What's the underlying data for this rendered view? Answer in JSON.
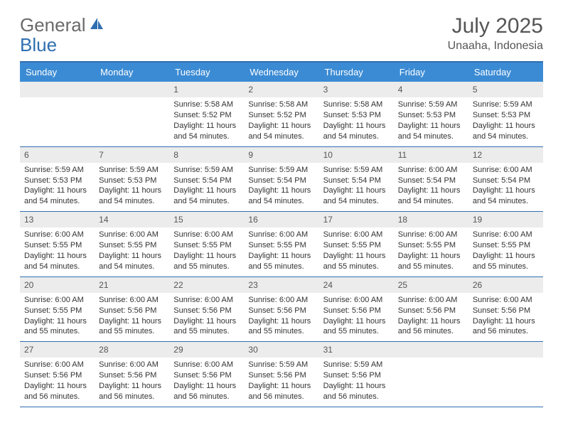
{
  "logo": {
    "part1": "General",
    "part2": "Blue"
  },
  "title": "July 2025",
  "location": "Unaaha, Indonesia",
  "colors": {
    "header_bg": "#3b8bd4",
    "header_border": "#2f6fb0",
    "daynum_bg": "#ececec",
    "text": "#333333",
    "logo_gray": "#6a6a6a",
    "logo_blue": "#2f6fb0"
  },
  "day_names": [
    "Sunday",
    "Monday",
    "Tuesday",
    "Wednesday",
    "Thursday",
    "Friday",
    "Saturday"
  ],
  "calendar": {
    "type": "table",
    "columns": 7,
    "weeks": [
      [
        {
          "n": "",
          "sr": "",
          "ss": "",
          "dl": ""
        },
        {
          "n": "",
          "sr": "",
          "ss": "",
          "dl": ""
        },
        {
          "n": "1",
          "sr": "Sunrise: 5:58 AM",
          "ss": "Sunset: 5:52 PM",
          "dl": "Daylight: 11 hours and 54 minutes."
        },
        {
          "n": "2",
          "sr": "Sunrise: 5:58 AM",
          "ss": "Sunset: 5:52 PM",
          "dl": "Daylight: 11 hours and 54 minutes."
        },
        {
          "n": "3",
          "sr": "Sunrise: 5:58 AM",
          "ss": "Sunset: 5:53 PM",
          "dl": "Daylight: 11 hours and 54 minutes."
        },
        {
          "n": "4",
          "sr": "Sunrise: 5:59 AM",
          "ss": "Sunset: 5:53 PM",
          "dl": "Daylight: 11 hours and 54 minutes."
        },
        {
          "n": "5",
          "sr": "Sunrise: 5:59 AM",
          "ss": "Sunset: 5:53 PM",
          "dl": "Daylight: 11 hours and 54 minutes."
        }
      ],
      [
        {
          "n": "6",
          "sr": "Sunrise: 5:59 AM",
          "ss": "Sunset: 5:53 PM",
          "dl": "Daylight: 11 hours and 54 minutes."
        },
        {
          "n": "7",
          "sr": "Sunrise: 5:59 AM",
          "ss": "Sunset: 5:53 PM",
          "dl": "Daylight: 11 hours and 54 minutes."
        },
        {
          "n": "8",
          "sr": "Sunrise: 5:59 AM",
          "ss": "Sunset: 5:54 PM",
          "dl": "Daylight: 11 hours and 54 minutes."
        },
        {
          "n": "9",
          "sr": "Sunrise: 5:59 AM",
          "ss": "Sunset: 5:54 PM",
          "dl": "Daylight: 11 hours and 54 minutes."
        },
        {
          "n": "10",
          "sr": "Sunrise: 5:59 AM",
          "ss": "Sunset: 5:54 PM",
          "dl": "Daylight: 11 hours and 54 minutes."
        },
        {
          "n": "11",
          "sr": "Sunrise: 6:00 AM",
          "ss": "Sunset: 5:54 PM",
          "dl": "Daylight: 11 hours and 54 minutes."
        },
        {
          "n": "12",
          "sr": "Sunrise: 6:00 AM",
          "ss": "Sunset: 5:54 PM",
          "dl": "Daylight: 11 hours and 54 minutes."
        }
      ],
      [
        {
          "n": "13",
          "sr": "Sunrise: 6:00 AM",
          "ss": "Sunset: 5:55 PM",
          "dl": "Daylight: 11 hours and 54 minutes."
        },
        {
          "n": "14",
          "sr": "Sunrise: 6:00 AM",
          "ss": "Sunset: 5:55 PM",
          "dl": "Daylight: 11 hours and 54 minutes."
        },
        {
          "n": "15",
          "sr": "Sunrise: 6:00 AM",
          "ss": "Sunset: 5:55 PM",
          "dl": "Daylight: 11 hours and 55 minutes."
        },
        {
          "n": "16",
          "sr": "Sunrise: 6:00 AM",
          "ss": "Sunset: 5:55 PM",
          "dl": "Daylight: 11 hours and 55 minutes."
        },
        {
          "n": "17",
          "sr": "Sunrise: 6:00 AM",
          "ss": "Sunset: 5:55 PM",
          "dl": "Daylight: 11 hours and 55 minutes."
        },
        {
          "n": "18",
          "sr": "Sunrise: 6:00 AM",
          "ss": "Sunset: 5:55 PM",
          "dl": "Daylight: 11 hours and 55 minutes."
        },
        {
          "n": "19",
          "sr": "Sunrise: 6:00 AM",
          "ss": "Sunset: 5:55 PM",
          "dl": "Daylight: 11 hours and 55 minutes."
        }
      ],
      [
        {
          "n": "20",
          "sr": "Sunrise: 6:00 AM",
          "ss": "Sunset: 5:55 PM",
          "dl": "Daylight: 11 hours and 55 minutes."
        },
        {
          "n": "21",
          "sr": "Sunrise: 6:00 AM",
          "ss": "Sunset: 5:56 PM",
          "dl": "Daylight: 11 hours and 55 minutes."
        },
        {
          "n": "22",
          "sr": "Sunrise: 6:00 AM",
          "ss": "Sunset: 5:56 PM",
          "dl": "Daylight: 11 hours and 55 minutes."
        },
        {
          "n": "23",
          "sr": "Sunrise: 6:00 AM",
          "ss": "Sunset: 5:56 PM",
          "dl": "Daylight: 11 hours and 55 minutes."
        },
        {
          "n": "24",
          "sr": "Sunrise: 6:00 AM",
          "ss": "Sunset: 5:56 PM",
          "dl": "Daylight: 11 hours and 55 minutes."
        },
        {
          "n": "25",
          "sr": "Sunrise: 6:00 AM",
          "ss": "Sunset: 5:56 PM",
          "dl": "Daylight: 11 hours and 56 minutes."
        },
        {
          "n": "26",
          "sr": "Sunrise: 6:00 AM",
          "ss": "Sunset: 5:56 PM",
          "dl": "Daylight: 11 hours and 56 minutes."
        }
      ],
      [
        {
          "n": "27",
          "sr": "Sunrise: 6:00 AM",
          "ss": "Sunset: 5:56 PM",
          "dl": "Daylight: 11 hours and 56 minutes."
        },
        {
          "n": "28",
          "sr": "Sunrise: 6:00 AM",
          "ss": "Sunset: 5:56 PM",
          "dl": "Daylight: 11 hours and 56 minutes."
        },
        {
          "n": "29",
          "sr": "Sunrise: 6:00 AM",
          "ss": "Sunset: 5:56 PM",
          "dl": "Daylight: 11 hours and 56 minutes."
        },
        {
          "n": "30",
          "sr": "Sunrise: 5:59 AM",
          "ss": "Sunset: 5:56 PM",
          "dl": "Daylight: 11 hours and 56 minutes."
        },
        {
          "n": "31",
          "sr": "Sunrise: 5:59 AM",
          "ss": "Sunset: 5:56 PM",
          "dl": "Daylight: 11 hours and 56 minutes."
        },
        {
          "n": "",
          "sr": "",
          "ss": "",
          "dl": ""
        },
        {
          "n": "",
          "sr": "",
          "ss": "",
          "dl": ""
        }
      ]
    ]
  }
}
